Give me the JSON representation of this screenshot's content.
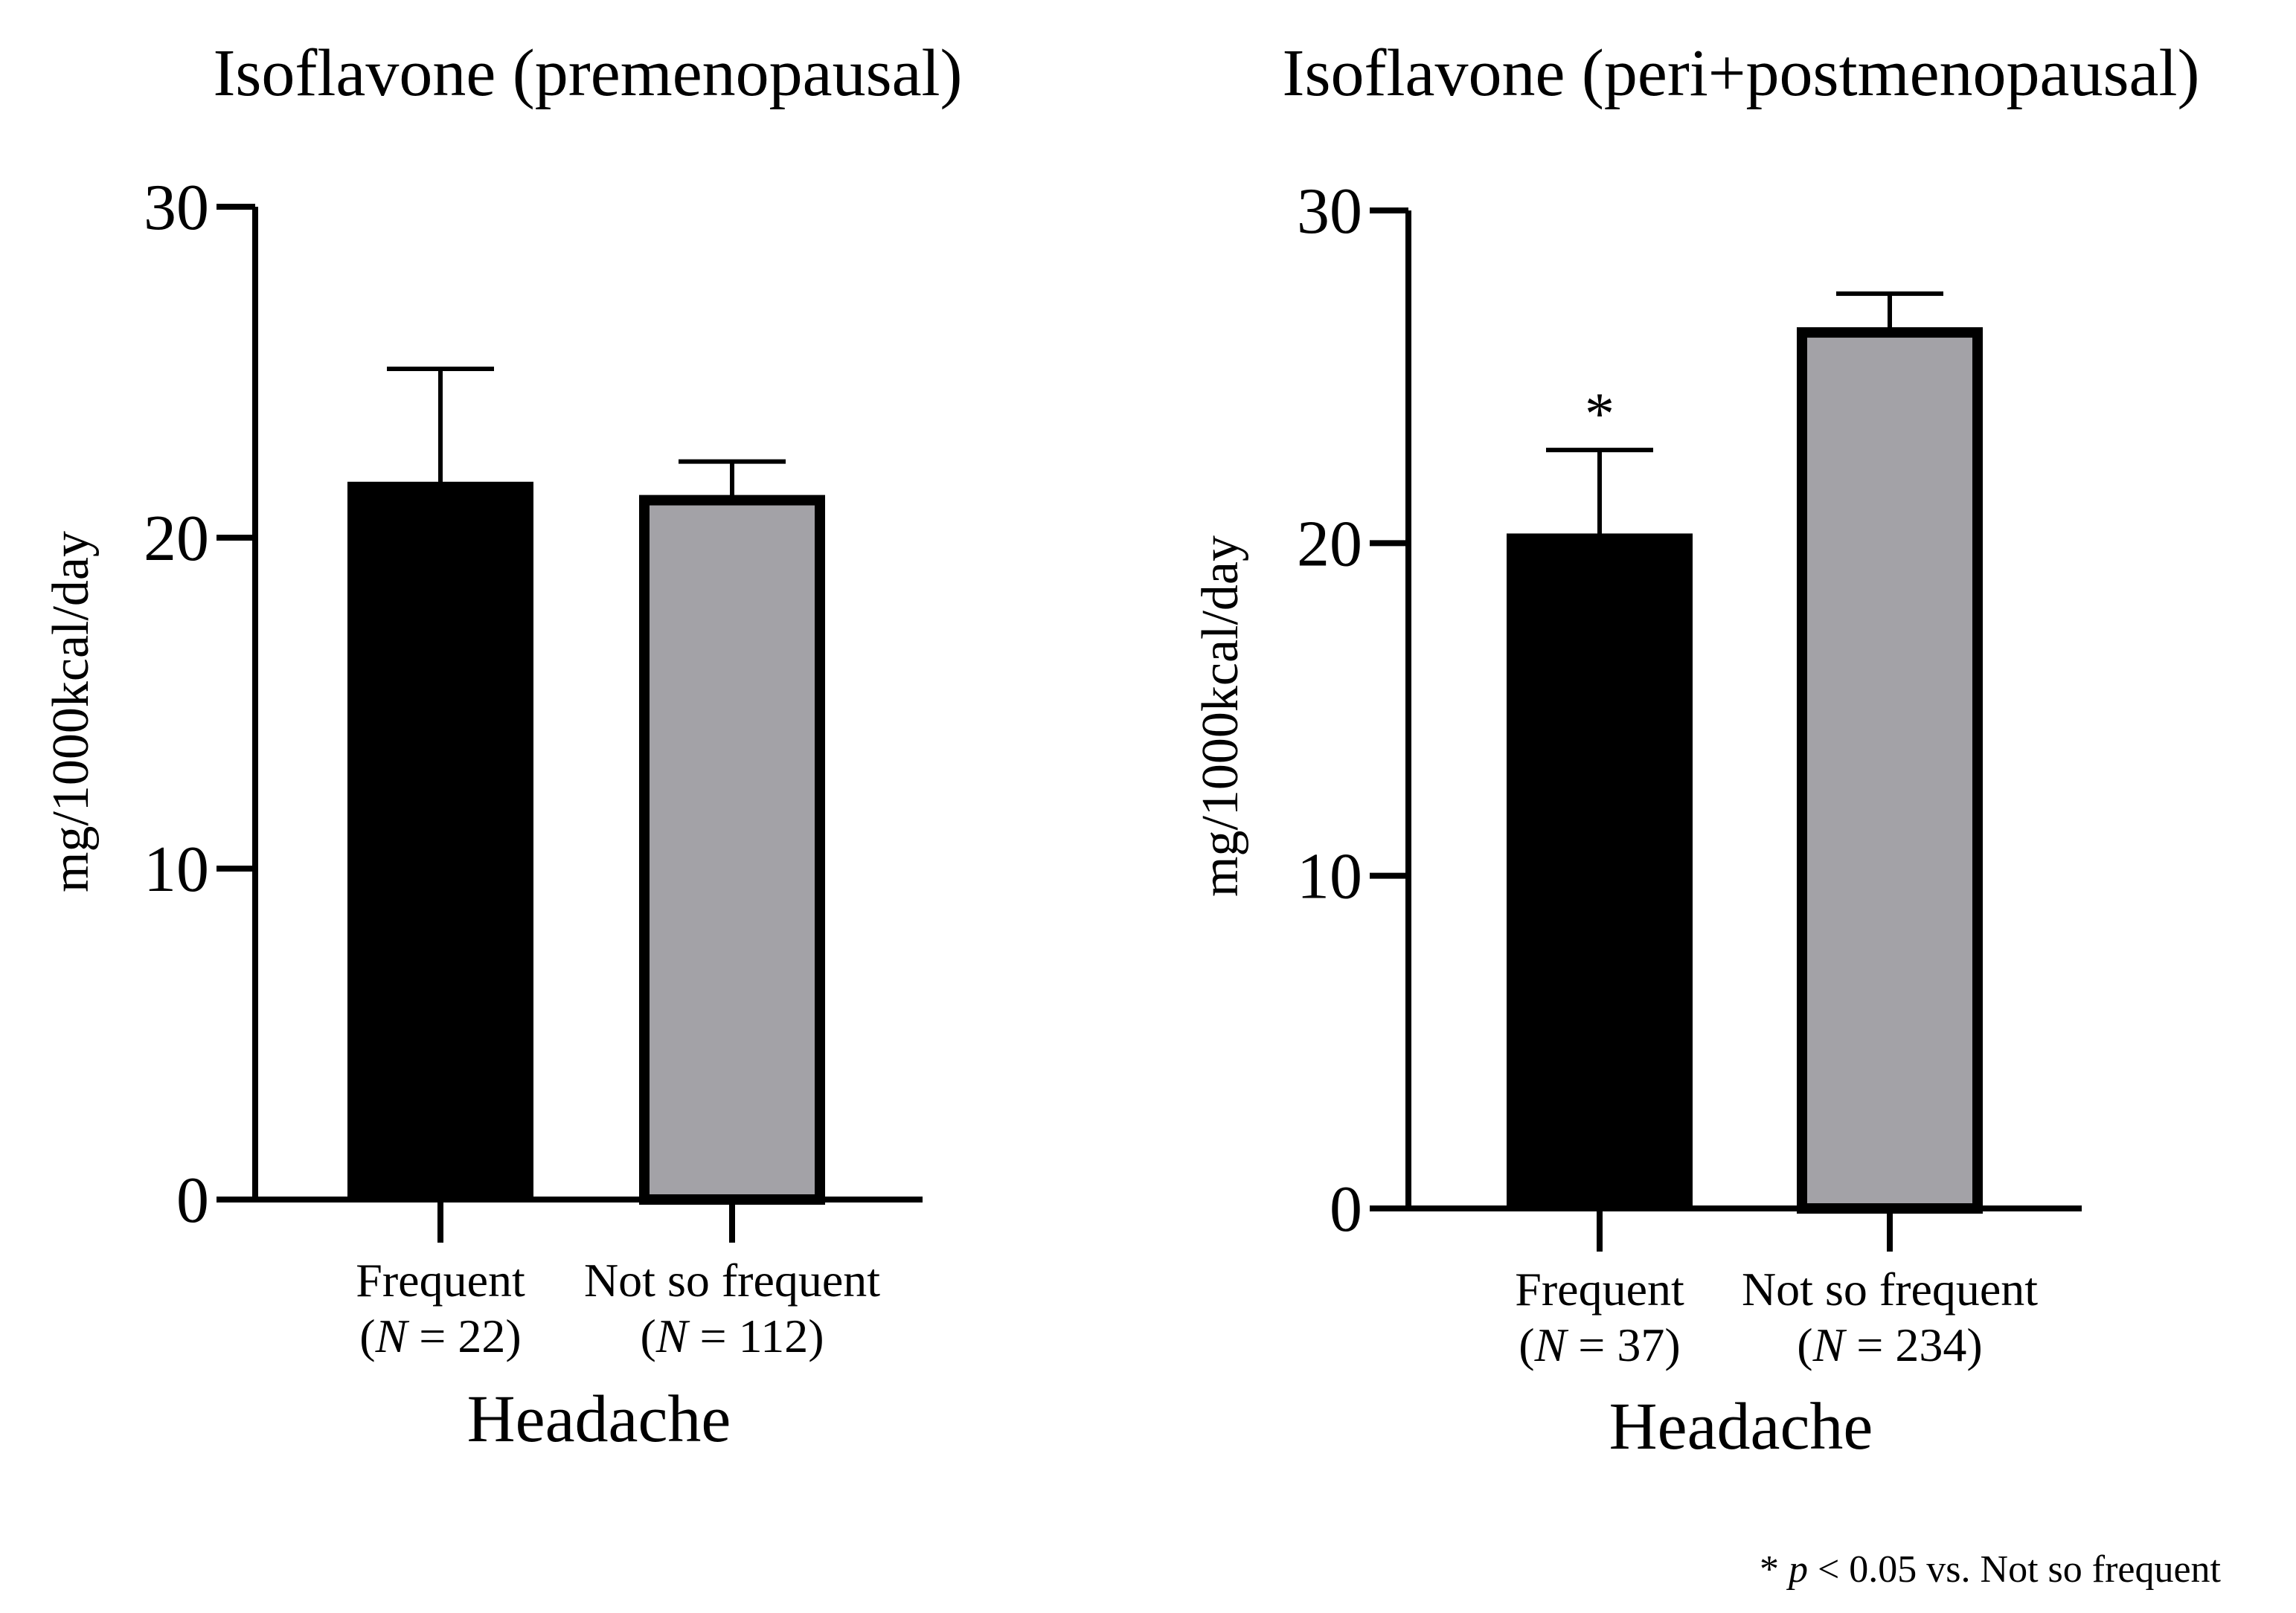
{
  "chart_data": [
    {
      "type": "bar",
      "title": "Isoflavone (premenopausal)",
      "ylabel": "mg/1000kcal/day",
      "xlabel": "Headache",
      "ylim": [
        0,
        30
      ],
      "yticks": [
        0,
        10,
        20,
        30
      ],
      "categories": [
        {
          "name": "Frequent",
          "n_label": "(N = 22)",
          "n_prefix": "(",
          "n_var": "N",
          "n_rest": " = 22)"
        },
        {
          "name": "Not so frequent",
          "n_label": "(N = 112)",
          "n_prefix": "(",
          "n_var": "N",
          "n_rest": " = 112)"
        }
      ],
      "values": [
        21.6,
        21.2
      ],
      "errors": [
        3.5,
        1.1
      ],
      "colors": [
        "#000000",
        "#a3a2a7"
      ],
      "significance": [
        "",
        ""
      ]
    },
    {
      "type": "bar",
      "title": "Isoflavone (peri+postmenopausal)",
      "ylabel": "mg/1000kcal/day",
      "xlabel": "Headache",
      "ylim": [
        0,
        30
      ],
      "yticks": [
        0,
        10,
        20,
        30
      ],
      "categories": [
        {
          "name": "Frequent",
          "n_label": "(N = 37)",
          "n_prefix": "(",
          "n_var": "N",
          "n_rest": " = 37)"
        },
        {
          "name": "Not so frequent",
          "n_label": "(N = 234)",
          "n_prefix": "(",
          "n_var": "N",
          "n_rest": " = 234)"
        }
      ],
      "values": [
        20.2,
        26.4
      ],
      "errors": [
        2.6,
        1.1
      ],
      "colors": [
        "#000000",
        "#a3a2a7"
      ],
      "significance": [
        "*",
        ""
      ]
    }
  ],
  "footnote": {
    "full_text": "* p < 0.05 vs. Not so frequent",
    "prefix": "* ",
    "var": "p",
    "rest": " < 0.05 vs. Not so frequent"
  }
}
